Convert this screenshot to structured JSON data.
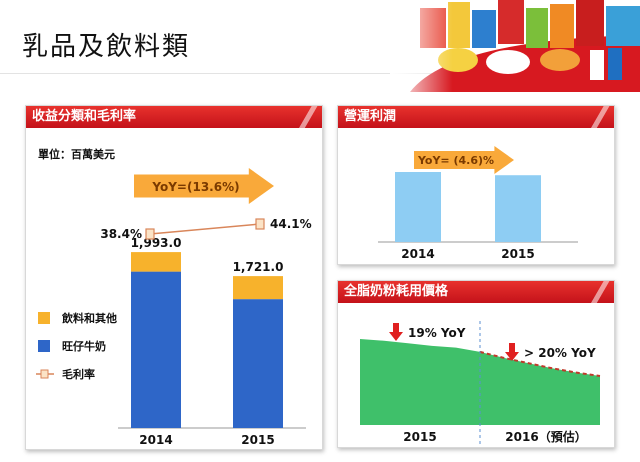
{
  "page": {
    "title": "乳品及飲料類"
  },
  "panels": {
    "revenue": {
      "title": "收益分類和毛利率",
      "unit": "單位：百萬美元"
    },
    "operating_profit": {
      "title": "營運利潤"
    },
    "milk_powder": {
      "title": "全脂奶粉耗用價格"
    }
  },
  "colors": {
    "header_red": "#d42027",
    "blue_bar": "#2e66c8",
    "orange_bar": "#f7b22c",
    "light_blue_bar": "#8ecdf3",
    "green_area": "#3fc06a",
    "arrow_orange": "#f9a93a",
    "down_arrow": "#e02020"
  },
  "chart_data": [
    {
      "type": "bar",
      "id": "revenue",
      "categories": [
        "2014",
        "2015"
      ],
      "series": [
        {
          "name": "旺仔牛奶",
          "values": [
            1772,
            1460
          ],
          "color": "#2e66c8"
        },
        {
          "name": "飲料和其他",
          "values": [
            221,
            261
          ],
          "color": "#f7b22c"
        }
      ],
      "totals": [
        1993.0,
        1721.0
      ],
      "total_labels": [
        "1,993.0",
        "1,721.0"
      ],
      "margin_line": {
        "name": "毛利率",
        "values": [
          38.4,
          44.1
        ],
        "labels": [
          "38.4%",
          "44.1%"
        ]
      },
      "yoy_label": "YoY=(13.6%)",
      "legend": [
        "飲料和其他",
        "旺仔牛奶",
        "毛利率"
      ],
      "ylim": [
        0,
        2300
      ]
    },
    {
      "type": "bar",
      "id": "operating_profit",
      "categories": [
        "2014",
        "2015"
      ],
      "values": [
        100,
        95.4
      ],
      "yoy_label": "YoY= (4.6)%",
      "ylim": [
        0,
        120
      ]
    },
    {
      "type": "area",
      "id": "milk_powder",
      "categories": [
        "2015",
        "2016（預估）"
      ],
      "x": [
        0,
        1,
        2,
        3,
        4,
        5,
        6,
        7,
        8,
        9,
        10
      ],
      "values": [
        100,
        98,
        95,
        92,
        90,
        85,
        78,
        72,
        66,
        61,
        57
      ],
      "forecast_from_index": 5,
      "annotations": [
        "19% YoY",
        "> 20% YoY"
      ],
      "ylim": [
        0,
        120
      ]
    }
  ]
}
